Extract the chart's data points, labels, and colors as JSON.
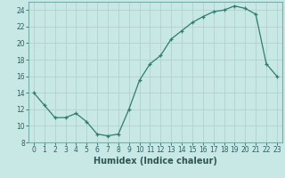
{
  "x_vals": [
    0,
    1,
    2,
    3,
    4,
    5,
    6,
    7,
    8,
    9,
    10,
    11,
    12,
    13,
    14,
    15,
    16,
    17,
    18,
    19,
    20,
    21,
    22,
    23
  ],
  "y_vals": [
    14,
    12.5,
    11,
    11,
    11.5,
    10.5,
    9,
    8.8,
    9,
    12,
    15.5,
    17.5,
    18.5,
    20.5,
    21.5,
    22.5,
    23.2,
    23.8,
    24.0,
    24.5,
    24.2,
    23.5,
    17.5,
    16.0
  ],
  "line_color": "#2e7d6e",
  "bg_color": "#c8e8e5",
  "grid_color": "#b0cccb",
  "xlabel": "Humidex (Indice chaleur)",
  "ylim": [
    8,
    25
  ],
  "xlim": [
    -0.5,
    23.5
  ],
  "yticks": [
    8,
    10,
    12,
    14,
    16,
    18,
    20,
    22,
    24
  ],
  "xticks": [
    0,
    1,
    2,
    3,
    4,
    5,
    6,
    7,
    8,
    9,
    10,
    11,
    12,
    13,
    14,
    15,
    16,
    17,
    18,
    19,
    20,
    21,
    22,
    23
  ],
  "tick_fontsize": 5.5,
  "xlabel_fontsize": 7
}
